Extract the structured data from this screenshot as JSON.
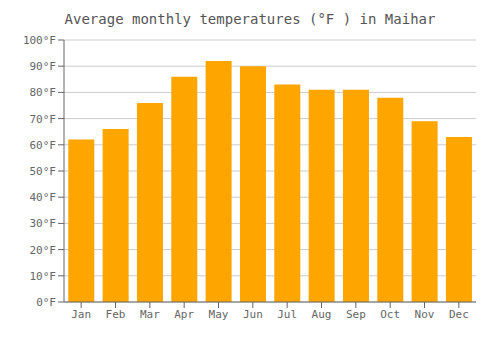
{
  "chart_data": {
    "type": "bar",
    "title": "Average monthly temperatures (°F ) in Maihar",
    "categories": [
      "Jan",
      "Feb",
      "Mar",
      "Apr",
      "May",
      "Jun",
      "Jul",
      "Aug",
      "Sep",
      "Oct",
      "Nov",
      "Dec"
    ],
    "values": [
      62,
      66,
      76,
      86,
      92,
      90,
      83,
      81,
      81,
      78,
      69,
      63
    ],
    "color": "#FFA500",
    "ylim": [
      0,
      100
    ],
    "yticks": [
      {
        "value": 0,
        "label": "0°F"
      },
      {
        "value": 10,
        "label": "10°F"
      },
      {
        "value": 20,
        "label": "20°F"
      },
      {
        "value": 30,
        "label": "30°F"
      },
      {
        "value": 40,
        "label": "40°F"
      },
      {
        "value": 50,
        "label": "50°F"
      },
      {
        "value": 60,
        "label": "60°F"
      },
      {
        "value": 70,
        "label": "70°F"
      },
      {
        "value": 80,
        "label": "80°F"
      },
      {
        "value": 90,
        "label": "90°F"
      },
      {
        "value": 100,
        "label": "100°F"
      }
    ],
    "grid": true
  }
}
